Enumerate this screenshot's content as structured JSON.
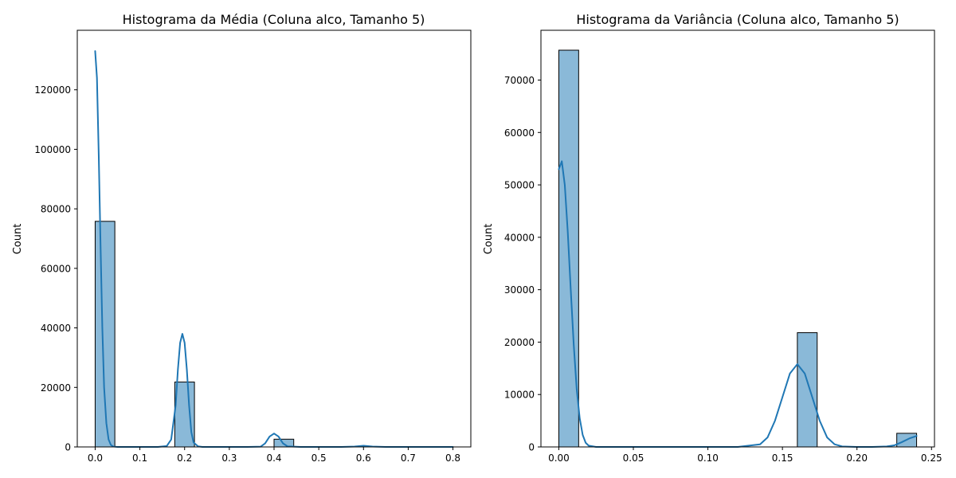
{
  "figure": {
    "background": "#ffffff"
  },
  "chart_data": [
    {
      "type": "bar",
      "title": "Histograma da Média (Coluna alco, Tamanho 5)",
      "xlabel": "",
      "ylabel": "Count",
      "xlim": [
        -0.04,
        0.84
      ],
      "ylim": [
        0,
        140000
      ],
      "grid": false,
      "legend": "none",
      "xticks": [
        0.0,
        0.1,
        0.2,
        0.3,
        0.4,
        0.5,
        0.6,
        0.7,
        0.8
      ],
      "xtick_labels": [
        "0.0",
        "0.1",
        "0.2",
        "0.3",
        "0.4",
        "0.5",
        "0.6",
        "0.7",
        "0.8"
      ],
      "yticks": [
        0,
        20000,
        40000,
        60000,
        80000,
        100000,
        120000
      ],
      "ytick_labels": [
        "0",
        "20000",
        "40000",
        "60000",
        "80000",
        "100000",
        "120000"
      ],
      "bars": [
        {
          "x0": 0.0,
          "x1": 0.044,
          "value": 75800
        },
        {
          "x0": 0.178,
          "x1": 0.222,
          "value": 21800
        },
        {
          "x0": 0.4,
          "x1": 0.444,
          "value": 2600
        },
        {
          "x0": 0.6,
          "x1": 0.644,
          "value": 50
        }
      ],
      "kde": {
        "x": [
          0.0,
          0.004,
          0.008,
          0.012,
          0.016,
          0.02,
          0.025,
          0.03,
          0.035,
          0.04,
          0.05,
          0.06,
          0.08,
          0.1,
          0.12,
          0.14,
          0.16,
          0.17,
          0.18,
          0.185,
          0.19,
          0.195,
          0.2,
          0.205,
          0.21,
          0.215,
          0.22,
          0.23,
          0.24,
          0.26,
          0.3,
          0.34,
          0.37,
          0.38,
          0.39,
          0.4,
          0.41,
          0.42,
          0.43,
          0.46,
          0.5,
          0.55,
          0.58,
          0.6,
          0.62,
          0.65,
          0.7,
          0.75,
          0.8
        ],
        "y": [
          133000,
          124000,
          98000,
          68000,
          40000,
          20000,
          8000,
          2500,
          700,
          150,
          0,
          0,
          0,
          0,
          0,
          0,
          300,
          2500,
          14000,
          26000,
          35000,
          38000,
          35000,
          26000,
          14000,
          5000,
          1500,
          200,
          0,
          0,
          0,
          0,
          100,
          1200,
          3500,
          4500,
          3500,
          1200,
          200,
          0,
          0,
          0,
          150,
          400,
          150,
          0,
          0,
          0,
          0
        ]
      },
      "bar_color": "#8ab9d8",
      "line_color": "#1f77b4"
    },
    {
      "type": "bar",
      "title": "Histograma da Variância (Coluna alco, Tamanho 5)",
      "xlabel": "",
      "ylabel": "Count",
      "xlim": [
        -0.012,
        0.252
      ],
      "ylim": [
        0,
        79500
      ],
      "grid": false,
      "legend": "none",
      "xticks": [
        0.0,
        0.05,
        0.1,
        0.15,
        0.2,
        0.25
      ],
      "xtick_labels": [
        "0.00",
        "0.05",
        "0.10",
        "0.15",
        "0.20",
        "0.25"
      ],
      "yticks": [
        0,
        10000,
        20000,
        30000,
        40000,
        50000,
        60000,
        70000
      ],
      "yticks_labels_note": "",
      "ytick_labels": [
        "0",
        "10000",
        "20000",
        "30000",
        "40000",
        "50000",
        "60000",
        "70000"
      ],
      "bars": [
        {
          "x0": 0.0,
          "x1": 0.0133,
          "value": 75700
        },
        {
          "x0": 0.16,
          "x1": 0.1733,
          "value": 21800
        },
        {
          "x0": 0.2267,
          "x1": 0.24,
          "value": 2600
        }
      ],
      "kde": {
        "x": [
          0.0,
          0.002,
          0.004,
          0.006,
          0.008,
          0.01,
          0.012,
          0.014,
          0.016,
          0.018,
          0.02,
          0.025,
          0.03,
          0.04,
          0.08,
          0.12,
          0.135,
          0.14,
          0.145,
          0.15,
          0.155,
          0.16,
          0.165,
          0.17,
          0.175,
          0.18,
          0.185,
          0.19,
          0.2,
          0.21,
          0.22,
          0.225,
          0.23,
          0.235,
          0.24
        ],
        "y": [
          53000,
          54500,
          50000,
          41000,
          30000,
          19500,
          11000,
          5500,
          2300,
          800,
          250,
          0,
          0,
          0,
          0,
          0,
          500,
          1800,
          5000,
          9500,
          14000,
          15800,
          14000,
          9500,
          5000,
          1800,
          500,
          100,
          0,
          0,
          100,
          300,
          900,
          1600,
          2100
        ]
      },
      "bar_color": "#8ab9d8",
      "line_color": "#1f77b4"
    }
  ]
}
